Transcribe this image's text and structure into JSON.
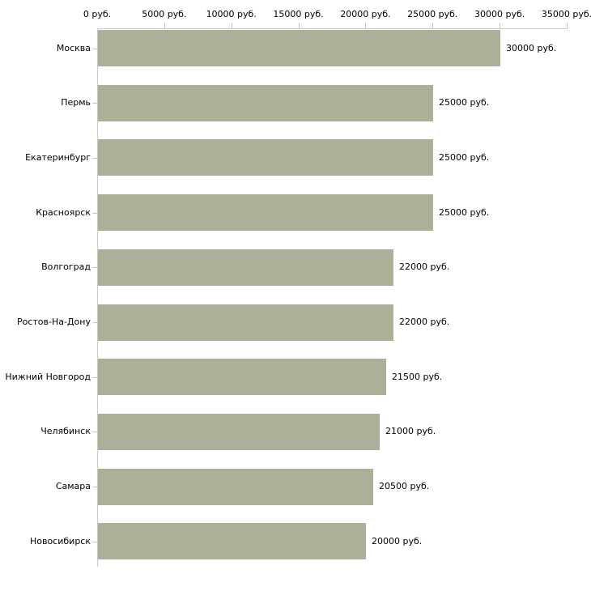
{
  "chart_data": {
    "type": "bar",
    "orientation": "horizontal",
    "categories": [
      "Москва",
      "Пермь",
      "Екатеринбург",
      "Красноярск",
      "Волгоград",
      "Ростов-На-Дону",
      "Нижний Новгород",
      "Челябинск",
      "Самара",
      "Новосибирск"
    ],
    "values": [
      30000,
      25000,
      25000,
      25000,
      22000,
      22000,
      21500,
      21000,
      20500,
      20000
    ],
    "value_labels": [
      "30000 руб.",
      "25000 руб.",
      "25000 руб.",
      "25000 руб.",
      "22000 руб.",
      "22000 руб.",
      "21500 руб.",
      "21000 руб.",
      "20500 руб.",
      "20000 руб."
    ],
    "x_ticks": [
      "0 руб.",
      "5000 руб.",
      "10000 руб.",
      "15000 руб.",
      "20000 руб.",
      "25000 руб.",
      "30000 руб.",
      "35000 руб."
    ],
    "x_tick_values": [
      0,
      5000,
      10000,
      15000,
      20000,
      25000,
      30000,
      35000
    ],
    "xlim": [
      0,
      35000
    ],
    "xlabel": "",
    "ylabel": "",
    "title": "",
    "grid": false,
    "legend": "none",
    "bar_color": "#abb199",
    "axis_color": "#c9c9c9",
    "tick_color": "#cccc99",
    "text_color": "#000000"
  }
}
